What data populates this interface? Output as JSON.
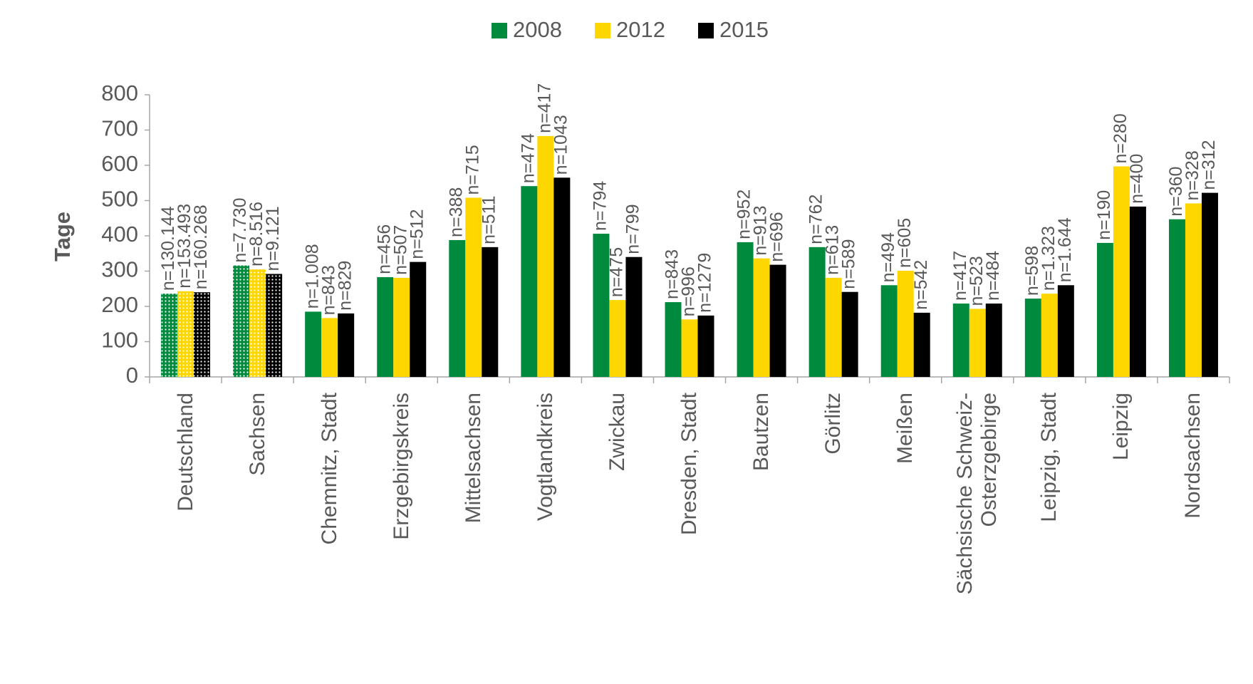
{
  "chart_data": {
    "type": "bar",
    "y_label": "Tage",
    "categories": [
      "Deutschland",
      "Sachsen",
      "Chemnitz, Stadt",
      "Erzgebirgskreis",
      "Mittelsachsen",
      "Vogtlandkreis",
      "Zwickau",
      "Dresden, Stadt",
      "Bautzen",
      "Görlitz",
      "Meißen",
      "Sächsische Schweiz-Osterzgebirge",
      "Leipzig, Stadt",
      "Leipzig",
      "Nordsachsen"
    ],
    "patterned": [
      true,
      true,
      false,
      false,
      false,
      false,
      false,
      false,
      false,
      false,
      false,
      false,
      false,
      false,
      false
    ],
    "series": [
      {
        "name": "2008",
        "color": "#008a3e",
        "values": [
          236,
          316,
          185,
          283,
          388,
          541,
          406,
          212,
          382,
          368,
          260,
          208,
          222,
          380,
          447
        ],
        "n_labels": [
          "n=130.144",
          "n=7.730",
          "n=1.008",
          "n=456",
          "n=388",
          "n=474",
          "n=794",
          "n=843",
          "n=952",
          "n=762",
          "n=494",
          "n=417",
          "n=598",
          "n=190",
          "n=360"
        ]
      },
      {
        "name": "2012",
        "color": "#ffd700",
        "values": [
          243,
          305,
          167,
          281,
          508,
          683,
          218,
          163,
          336,
          281,
          301,
          193,
          236,
          597,
          492
        ],
        "n_labels": [
          "n=153.493",
          "n=8.516",
          "n=843",
          "n=507",
          "n=715",
          "n=417",
          "n=475",
          "n=996",
          "n=913",
          "n=613",
          "n=605",
          "n=523",
          "n=1.323",
          "n=280",
          "n=328"
        ]
      },
      {
        "name": "2015",
        "color": "#000000",
        "values": [
          240,
          292,
          180,
          326,
          368,
          565,
          340,
          174,
          318,
          241,
          182,
          208,
          260,
          483,
          522
        ],
        "n_labels": [
          "n=160.268",
          "n=9.121",
          "n=829",
          "n=512",
          "n=511",
          "n=1043",
          "n=799",
          "n=1279",
          "n=696",
          "n=589",
          "n=542",
          "n=484",
          "n=1.644",
          "n=400",
          "n=312"
        ]
      }
    ],
    "ylim": [
      0,
      800
    ],
    "yticks": [
      0,
      100,
      200,
      300,
      400,
      500,
      600,
      700,
      800
    ],
    "grid": false,
    "legend": "top"
  }
}
